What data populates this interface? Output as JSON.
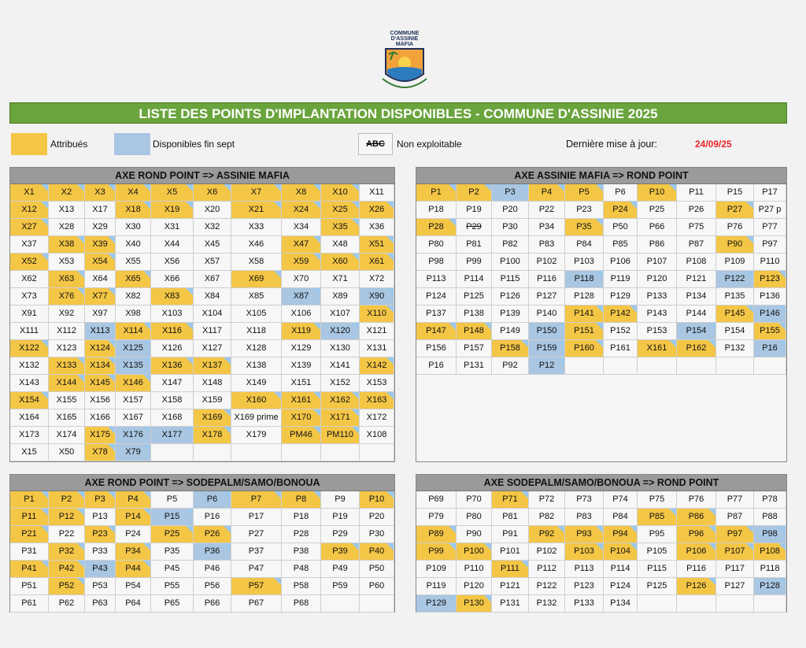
{
  "logo": {
    "text": "COMMUNE D'ASSINIE MAFIA"
  },
  "title": "LISTE DES POINTS D'IMPLANTATION DISPONIBLES - COMMUNE D'ASSINIE 2025",
  "legend": {
    "attribues": "Attribués",
    "disponibles": "Disponibles fin sept",
    "abc": "ABC",
    "non_exploitable": "Non exploitable",
    "update_label": "Dernière mise à jour:",
    "update_date": "24/09/25",
    "colors": {
      "attribues": "#f4c646",
      "disponibles": "#a9c6e2",
      "banner": "#6aa43c",
      "date": "#e8262a"
    }
  },
  "tables": [
    {
      "title": "AXE ROND POINT => ASSINIE MAFIA",
      "rows": [
        "X1:a X2:a X3:a X4:a X5:a X6:a X7:a X8:a X10:a X11",
        "X12:a X13 X17 X18:a X19:a X20 X21:a X24:a X25:a X26:a",
        "X27:a X28 X29 X30 X31 X32 X33 X34 X35:a X36",
        "X37 X38:a X39:a X40 X44 X45 X46 X47:a X48 X51:a",
        "X52:a X53 X54:a X55 X56 X57 X58 X59:a X60:a X61:a",
        "X62 X63:a X64 X65:a X66 X67 X69:a X70 X71 X72",
        "X73 X76:a X77:a X82 X83:a X84 X85 X87:b X89 X90:b",
        "X91 X92 X97 X98 X103 X104 X105 X106 X107 X110:a",
        "X111 X112 X113:b X114:a X116:a X117 X118 X119:a X120:b X121",
        "X122:a X123 X124:a X125:b X126 X127 X128 X129 X130 X131",
        "X132 X133:a X134:a X135:b X136:a X137:a X138 X139 X141 X142:a",
        "X143 X144:a X145:a X146:a X147 X148 X149 X151 X152 X153",
        "X154:a X155 X156 X157 X158 X159 X160:a X161:a X162:a X163:a",
        "X164 X165 X166 X167 X168 X169:a X169_prime X170:a X171:a X172",
        "X173 X174 X175:a X176:b X177:b X178:a X179 PM46:a PM110:a X108",
        "X15 X50 X78:a X79:b _ _ _ _ _ _"
      ]
    },
    {
      "title": "AXE ASSINIE MAFIA => ROND POINT",
      "rows": [
        "P1:a P2:a P3:b P4:a P5:a P6 P10:a P11 P15 P17",
        "P18 P19 P20 P22 P23 P24:a P25 P26 P27:a P27_p",
        "P28:a P29:s P30 P34 P35:a P50 P66 P75 P76 P77",
        "P80 P81 P82 P83 P84 P85 P86 P87 P90:a P97",
        "P98 P99 P100 P102 P103 P106 P107 P108 P109 P110",
        "P113 P114 P115 P116 P118:b P119 P120 P121 P122:b P123:a",
        "P124 P125 P126 P127 P128 P129 P133 P134 P135 P136",
        "P137 P138 P139 P140 P141:a P142:a P143 P144 P145:a P146:b",
        "P147:a P148:a P149 P150:b P151:a P152 P153 P154:b P154 P155:a",
        "P156 P157 P158:a P159:b P160:a P161 X161:a P162:a P132 P16:b",
        "P16 P131 P92 P12:b _ _ _ _ _ _"
      ]
    },
    {
      "title": "AXE ROND POINT => SODEPALM/SAMO/BONOUA",
      "rows": [
        "P1:a P2:a P3:a P4:a P5 P6:b P7:a P8:a P9 P10:a",
        "P11:a P12:a P13 P14:a P15:b P16 P17 P18 P19 P20",
        "P21:a P22 P23:a P24 P25:a P26:a P27 P28 P29 P30",
        "P31 P32:a P33 P34:a P35 P36:b P37 P38 P39:a P40:a",
        "P41:a P42:a P43:b P44:a P45 P46 P47 P48 P49 P50",
        "P51 P52:a P53 P54 P55 P56 P57:a P58 P59 P60",
        "P61 P62 P63 P64 P65 P66 P67 P68 _ _"
      ]
    },
    {
      "title": "AXE SODEPALM/SAMO/BONOUA => ROND POINT",
      "rows": [
        "P69 P70 P71:a P72 P73 P74 P75 P76 P77 P78",
        "P79 P80 P81 P82 P83 P84 P85:a P86:a P87 P88",
        "P89:a P90 P91 P92:a P93:a P94:a P95 P96:a P97:a P98:b",
        "P99:a P100:a P101 P102 P103:a P104:a P105 P106:a P107:a P108:a",
        "P109 P110 P111:a P112 P113 P114 P115 P116 P117 P118",
        "P119 P120 P121 P122 P123 P124 P125 P126:a P127 P128:b",
        "P129:b P130:a P131 P132 P133 P134 _ _ _ _"
      ]
    }
  ]
}
